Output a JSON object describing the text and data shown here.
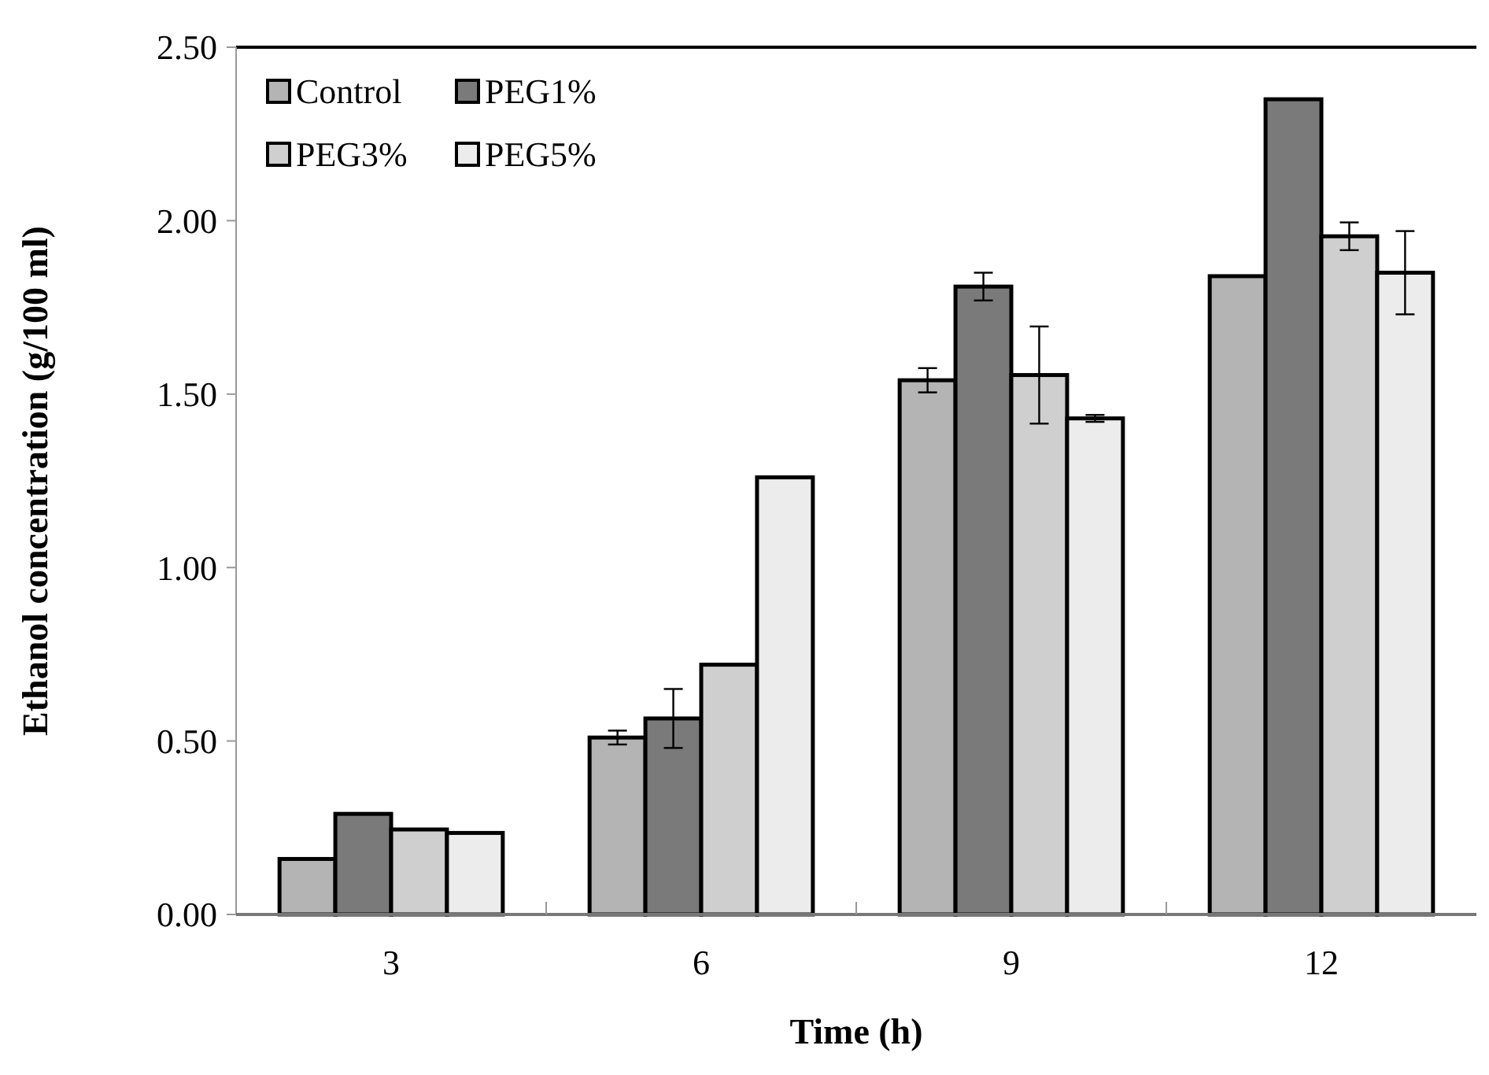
{
  "chart_data": {
    "type": "bar",
    "xlabel": "Time (h)",
    "ylabel": "Ethanol concentration (g/100 ml)",
    "categories": [
      "3",
      "6",
      "9",
      "12"
    ],
    "series": [
      {
        "name": "Control",
        "color": "#b4b4b4",
        "values": [
          0.16,
          0.51,
          1.54,
          1.84
        ],
        "errors": [
          null,
          0.02,
          0.035,
          null
        ]
      },
      {
        "name": "PEG1%",
        "color": "#7a7a7a",
        "values": [
          0.29,
          0.565,
          1.81,
          2.35
        ],
        "errors": [
          null,
          0.085,
          0.04,
          null
        ]
      },
      {
        "name": "PEG3%",
        "color": "#cfcfcf",
        "values": [
          0.245,
          0.72,
          1.555,
          1.955
        ],
        "errors": [
          null,
          null,
          0.14,
          0.04
        ]
      },
      {
        "name": "PEG5%",
        "color": "#ececec",
        "values": [
          0.235,
          1.26,
          1.43,
          1.85
        ],
        "errors": [
          null,
          null,
          0.01,
          0.12
        ]
      }
    ],
    "ylim": [
      0,
      2.5
    ],
    "yticks": [
      {
        "value": 0,
        "label": "0.00"
      },
      {
        "value": 0.5,
        "label": "0.50"
      },
      {
        "value": 1,
        "label": "1.00"
      },
      {
        "value": 1.5,
        "label": "1.50"
      },
      {
        "value": 2,
        "label": "2.00"
      },
      {
        "value": 2.5,
        "label": "2.50"
      }
    ],
    "grid": false,
    "legend": "top left"
  }
}
